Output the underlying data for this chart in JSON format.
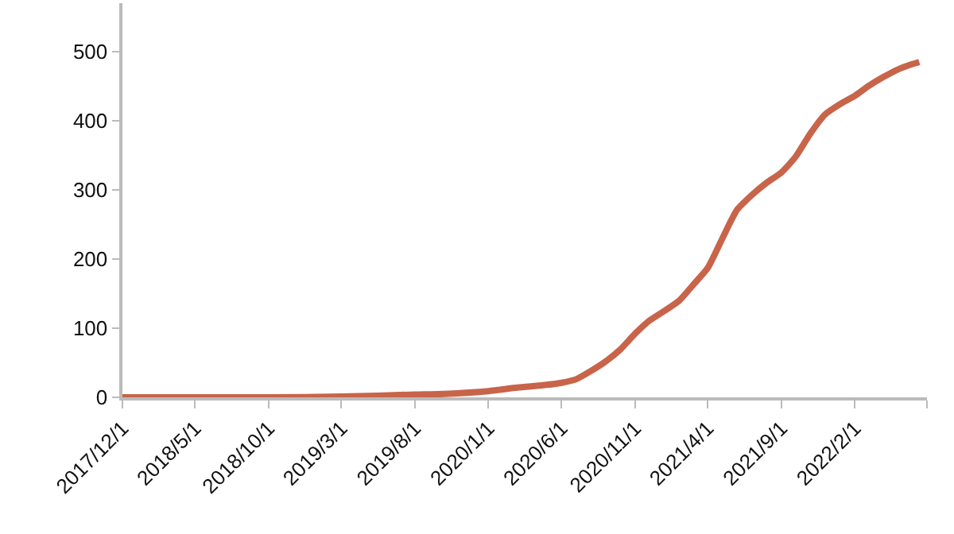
{
  "chart_data": {
    "type": "line",
    "x": [
      "2017-12-01",
      "2018-05-01",
      "2018-10-01",
      "2019-03-01",
      "2019-08-01",
      "2019-10-01",
      "2020-01-01",
      "2020-03-01",
      "2020-05-01",
      "2020-06-01",
      "2020-07-01",
      "2020-08-01",
      "2020-09-01",
      "2020-10-01",
      "2020-11-01",
      "2020-12-01",
      "2021-01-01",
      "2021-02-01",
      "2021-03-01",
      "2021-04-01",
      "2021-05-01",
      "2021-06-01",
      "2021-07-01",
      "2021-08-01",
      "2021-09-01",
      "2021-10-01",
      "2021-11-01",
      "2021-12-01",
      "2022-01-01",
      "2022-02-01",
      "2022-03-01",
      "2022-04-01",
      "2022-05-01",
      "2022-06-01",
      "2022-06-15"
    ],
    "series": [
      {
        "color": "#c8644a",
        "values": [
          0,
          0,
          0,
          1,
          4,
          5,
          9,
          14,
          18,
          21,
          26,
          38,
          52,
          69,
          92,
          111,
          125,
          140,
          162,
          187,
          229,
          271,
          292,
          310,
          325,
          348,
          382,
          409,
          424,
          436,
          450,
          463,
          474,
          482,
          485
        ]
      }
    ],
    "xlim": [
      "2017-12-01",
      "2022-07-01"
    ],
    "xticks": [
      {
        "value": "2017-12-01",
        "label": "2017/12/1"
      },
      {
        "value": "2018-05-01",
        "label": "2018/5/1"
      },
      {
        "value": "2018-10-01",
        "label": "2018/10/1"
      },
      {
        "value": "2019-03-01",
        "label": "2019/3/1"
      },
      {
        "value": "2019-08-01",
        "label": "2019/8/1"
      },
      {
        "value": "2020-01-01",
        "label": "2020/1/1"
      },
      {
        "value": "2020-06-01",
        "label": "2020/6/1"
      },
      {
        "value": "2020-11-01",
        "label": "2020/11/1"
      },
      {
        "value": "2021-04-01",
        "label": "2021/4/1"
      },
      {
        "value": "2021-09-01",
        "label": "2021/9/1"
      },
      {
        "value": "2022-02-01",
        "label": "2022/2/1"
      },
      {
        "value": "2022-07-01",
        "label": null
      }
    ],
    "ylim": [
      0,
      570
    ],
    "yticks": [
      0,
      100,
      200,
      300,
      400,
      500
    ],
    "legend": false,
    "marker": "none",
    "line_style": "solid"
  }
}
